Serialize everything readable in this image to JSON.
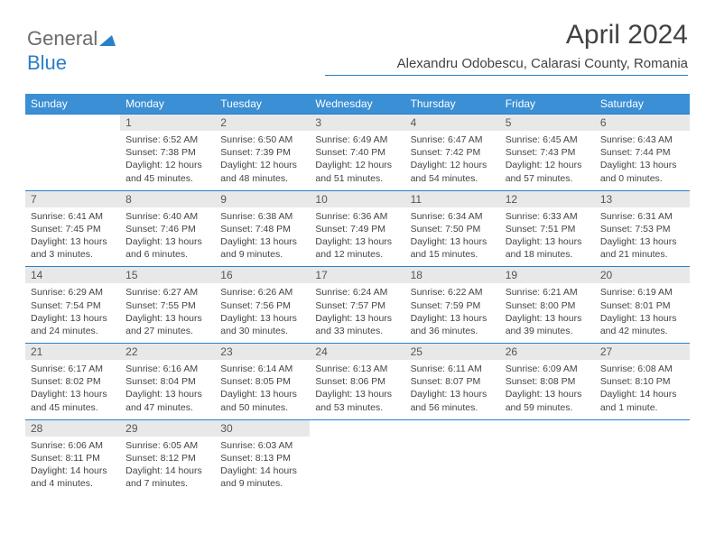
{
  "logo": {
    "part1": "General",
    "part2": "Blue"
  },
  "title": "April 2024",
  "location": "Alexandru Odobescu, Calarasi County, Romania",
  "colors": {
    "header_bg": "#3b8fd4",
    "header_text": "#ffffff",
    "accent_line": "#2a7fc9",
    "daynum_bg": "#e8e8e8",
    "body_text": "#444444",
    "title_text": "#424242",
    "logo_gray": "#6b6b6b",
    "logo_blue": "#2a7fc9"
  },
  "weekdays": [
    "Sunday",
    "Monday",
    "Tuesday",
    "Wednesday",
    "Thursday",
    "Friday",
    "Saturday"
  ],
  "weeks": [
    {
      "nums": [
        "",
        "1",
        "2",
        "3",
        "4",
        "5",
        "6"
      ],
      "cells": [
        null,
        {
          "sr": "Sunrise: 6:52 AM",
          "ss": "Sunset: 7:38 PM",
          "dl1": "Daylight: 12 hours",
          "dl2": "and 45 minutes."
        },
        {
          "sr": "Sunrise: 6:50 AM",
          "ss": "Sunset: 7:39 PM",
          "dl1": "Daylight: 12 hours",
          "dl2": "and 48 minutes."
        },
        {
          "sr": "Sunrise: 6:49 AM",
          "ss": "Sunset: 7:40 PM",
          "dl1": "Daylight: 12 hours",
          "dl2": "and 51 minutes."
        },
        {
          "sr": "Sunrise: 6:47 AM",
          "ss": "Sunset: 7:42 PM",
          "dl1": "Daylight: 12 hours",
          "dl2": "and 54 minutes."
        },
        {
          "sr": "Sunrise: 6:45 AM",
          "ss": "Sunset: 7:43 PM",
          "dl1": "Daylight: 12 hours",
          "dl2": "and 57 minutes."
        },
        {
          "sr": "Sunrise: 6:43 AM",
          "ss": "Sunset: 7:44 PM",
          "dl1": "Daylight: 13 hours",
          "dl2": "and 0 minutes."
        }
      ]
    },
    {
      "nums": [
        "7",
        "8",
        "9",
        "10",
        "11",
        "12",
        "13"
      ],
      "cells": [
        {
          "sr": "Sunrise: 6:41 AM",
          "ss": "Sunset: 7:45 PM",
          "dl1": "Daylight: 13 hours",
          "dl2": "and 3 minutes."
        },
        {
          "sr": "Sunrise: 6:40 AM",
          "ss": "Sunset: 7:46 PM",
          "dl1": "Daylight: 13 hours",
          "dl2": "and 6 minutes."
        },
        {
          "sr": "Sunrise: 6:38 AM",
          "ss": "Sunset: 7:48 PM",
          "dl1": "Daylight: 13 hours",
          "dl2": "and 9 minutes."
        },
        {
          "sr": "Sunrise: 6:36 AM",
          "ss": "Sunset: 7:49 PM",
          "dl1": "Daylight: 13 hours",
          "dl2": "and 12 minutes."
        },
        {
          "sr": "Sunrise: 6:34 AM",
          "ss": "Sunset: 7:50 PM",
          "dl1": "Daylight: 13 hours",
          "dl2": "and 15 minutes."
        },
        {
          "sr": "Sunrise: 6:33 AM",
          "ss": "Sunset: 7:51 PM",
          "dl1": "Daylight: 13 hours",
          "dl2": "and 18 minutes."
        },
        {
          "sr": "Sunrise: 6:31 AM",
          "ss": "Sunset: 7:53 PM",
          "dl1": "Daylight: 13 hours",
          "dl2": "and 21 minutes."
        }
      ]
    },
    {
      "nums": [
        "14",
        "15",
        "16",
        "17",
        "18",
        "19",
        "20"
      ],
      "cells": [
        {
          "sr": "Sunrise: 6:29 AM",
          "ss": "Sunset: 7:54 PM",
          "dl1": "Daylight: 13 hours",
          "dl2": "and 24 minutes."
        },
        {
          "sr": "Sunrise: 6:27 AM",
          "ss": "Sunset: 7:55 PM",
          "dl1": "Daylight: 13 hours",
          "dl2": "and 27 minutes."
        },
        {
          "sr": "Sunrise: 6:26 AM",
          "ss": "Sunset: 7:56 PM",
          "dl1": "Daylight: 13 hours",
          "dl2": "and 30 minutes."
        },
        {
          "sr": "Sunrise: 6:24 AM",
          "ss": "Sunset: 7:57 PM",
          "dl1": "Daylight: 13 hours",
          "dl2": "and 33 minutes."
        },
        {
          "sr": "Sunrise: 6:22 AM",
          "ss": "Sunset: 7:59 PM",
          "dl1": "Daylight: 13 hours",
          "dl2": "and 36 minutes."
        },
        {
          "sr": "Sunrise: 6:21 AM",
          "ss": "Sunset: 8:00 PM",
          "dl1": "Daylight: 13 hours",
          "dl2": "and 39 minutes."
        },
        {
          "sr": "Sunrise: 6:19 AM",
          "ss": "Sunset: 8:01 PM",
          "dl1": "Daylight: 13 hours",
          "dl2": "and 42 minutes."
        }
      ]
    },
    {
      "nums": [
        "21",
        "22",
        "23",
        "24",
        "25",
        "26",
        "27"
      ],
      "cells": [
        {
          "sr": "Sunrise: 6:17 AM",
          "ss": "Sunset: 8:02 PM",
          "dl1": "Daylight: 13 hours",
          "dl2": "and 45 minutes."
        },
        {
          "sr": "Sunrise: 6:16 AM",
          "ss": "Sunset: 8:04 PM",
          "dl1": "Daylight: 13 hours",
          "dl2": "and 47 minutes."
        },
        {
          "sr": "Sunrise: 6:14 AM",
          "ss": "Sunset: 8:05 PM",
          "dl1": "Daylight: 13 hours",
          "dl2": "and 50 minutes."
        },
        {
          "sr": "Sunrise: 6:13 AM",
          "ss": "Sunset: 8:06 PM",
          "dl1": "Daylight: 13 hours",
          "dl2": "and 53 minutes."
        },
        {
          "sr": "Sunrise: 6:11 AM",
          "ss": "Sunset: 8:07 PM",
          "dl1": "Daylight: 13 hours",
          "dl2": "and 56 minutes."
        },
        {
          "sr": "Sunrise: 6:09 AM",
          "ss": "Sunset: 8:08 PM",
          "dl1": "Daylight: 13 hours",
          "dl2": "and 59 minutes."
        },
        {
          "sr": "Sunrise: 6:08 AM",
          "ss": "Sunset: 8:10 PM",
          "dl1": "Daylight: 14 hours",
          "dl2": "and 1 minute."
        }
      ]
    },
    {
      "nums": [
        "28",
        "29",
        "30",
        "",
        "",
        "",
        ""
      ],
      "cells": [
        {
          "sr": "Sunrise: 6:06 AM",
          "ss": "Sunset: 8:11 PM",
          "dl1": "Daylight: 14 hours",
          "dl2": "and 4 minutes."
        },
        {
          "sr": "Sunrise: 6:05 AM",
          "ss": "Sunset: 8:12 PM",
          "dl1": "Daylight: 14 hours",
          "dl2": "and 7 minutes."
        },
        {
          "sr": "Sunrise: 6:03 AM",
          "ss": "Sunset: 8:13 PM",
          "dl1": "Daylight: 14 hours",
          "dl2": "and 9 minutes."
        },
        null,
        null,
        null,
        null
      ]
    }
  ]
}
